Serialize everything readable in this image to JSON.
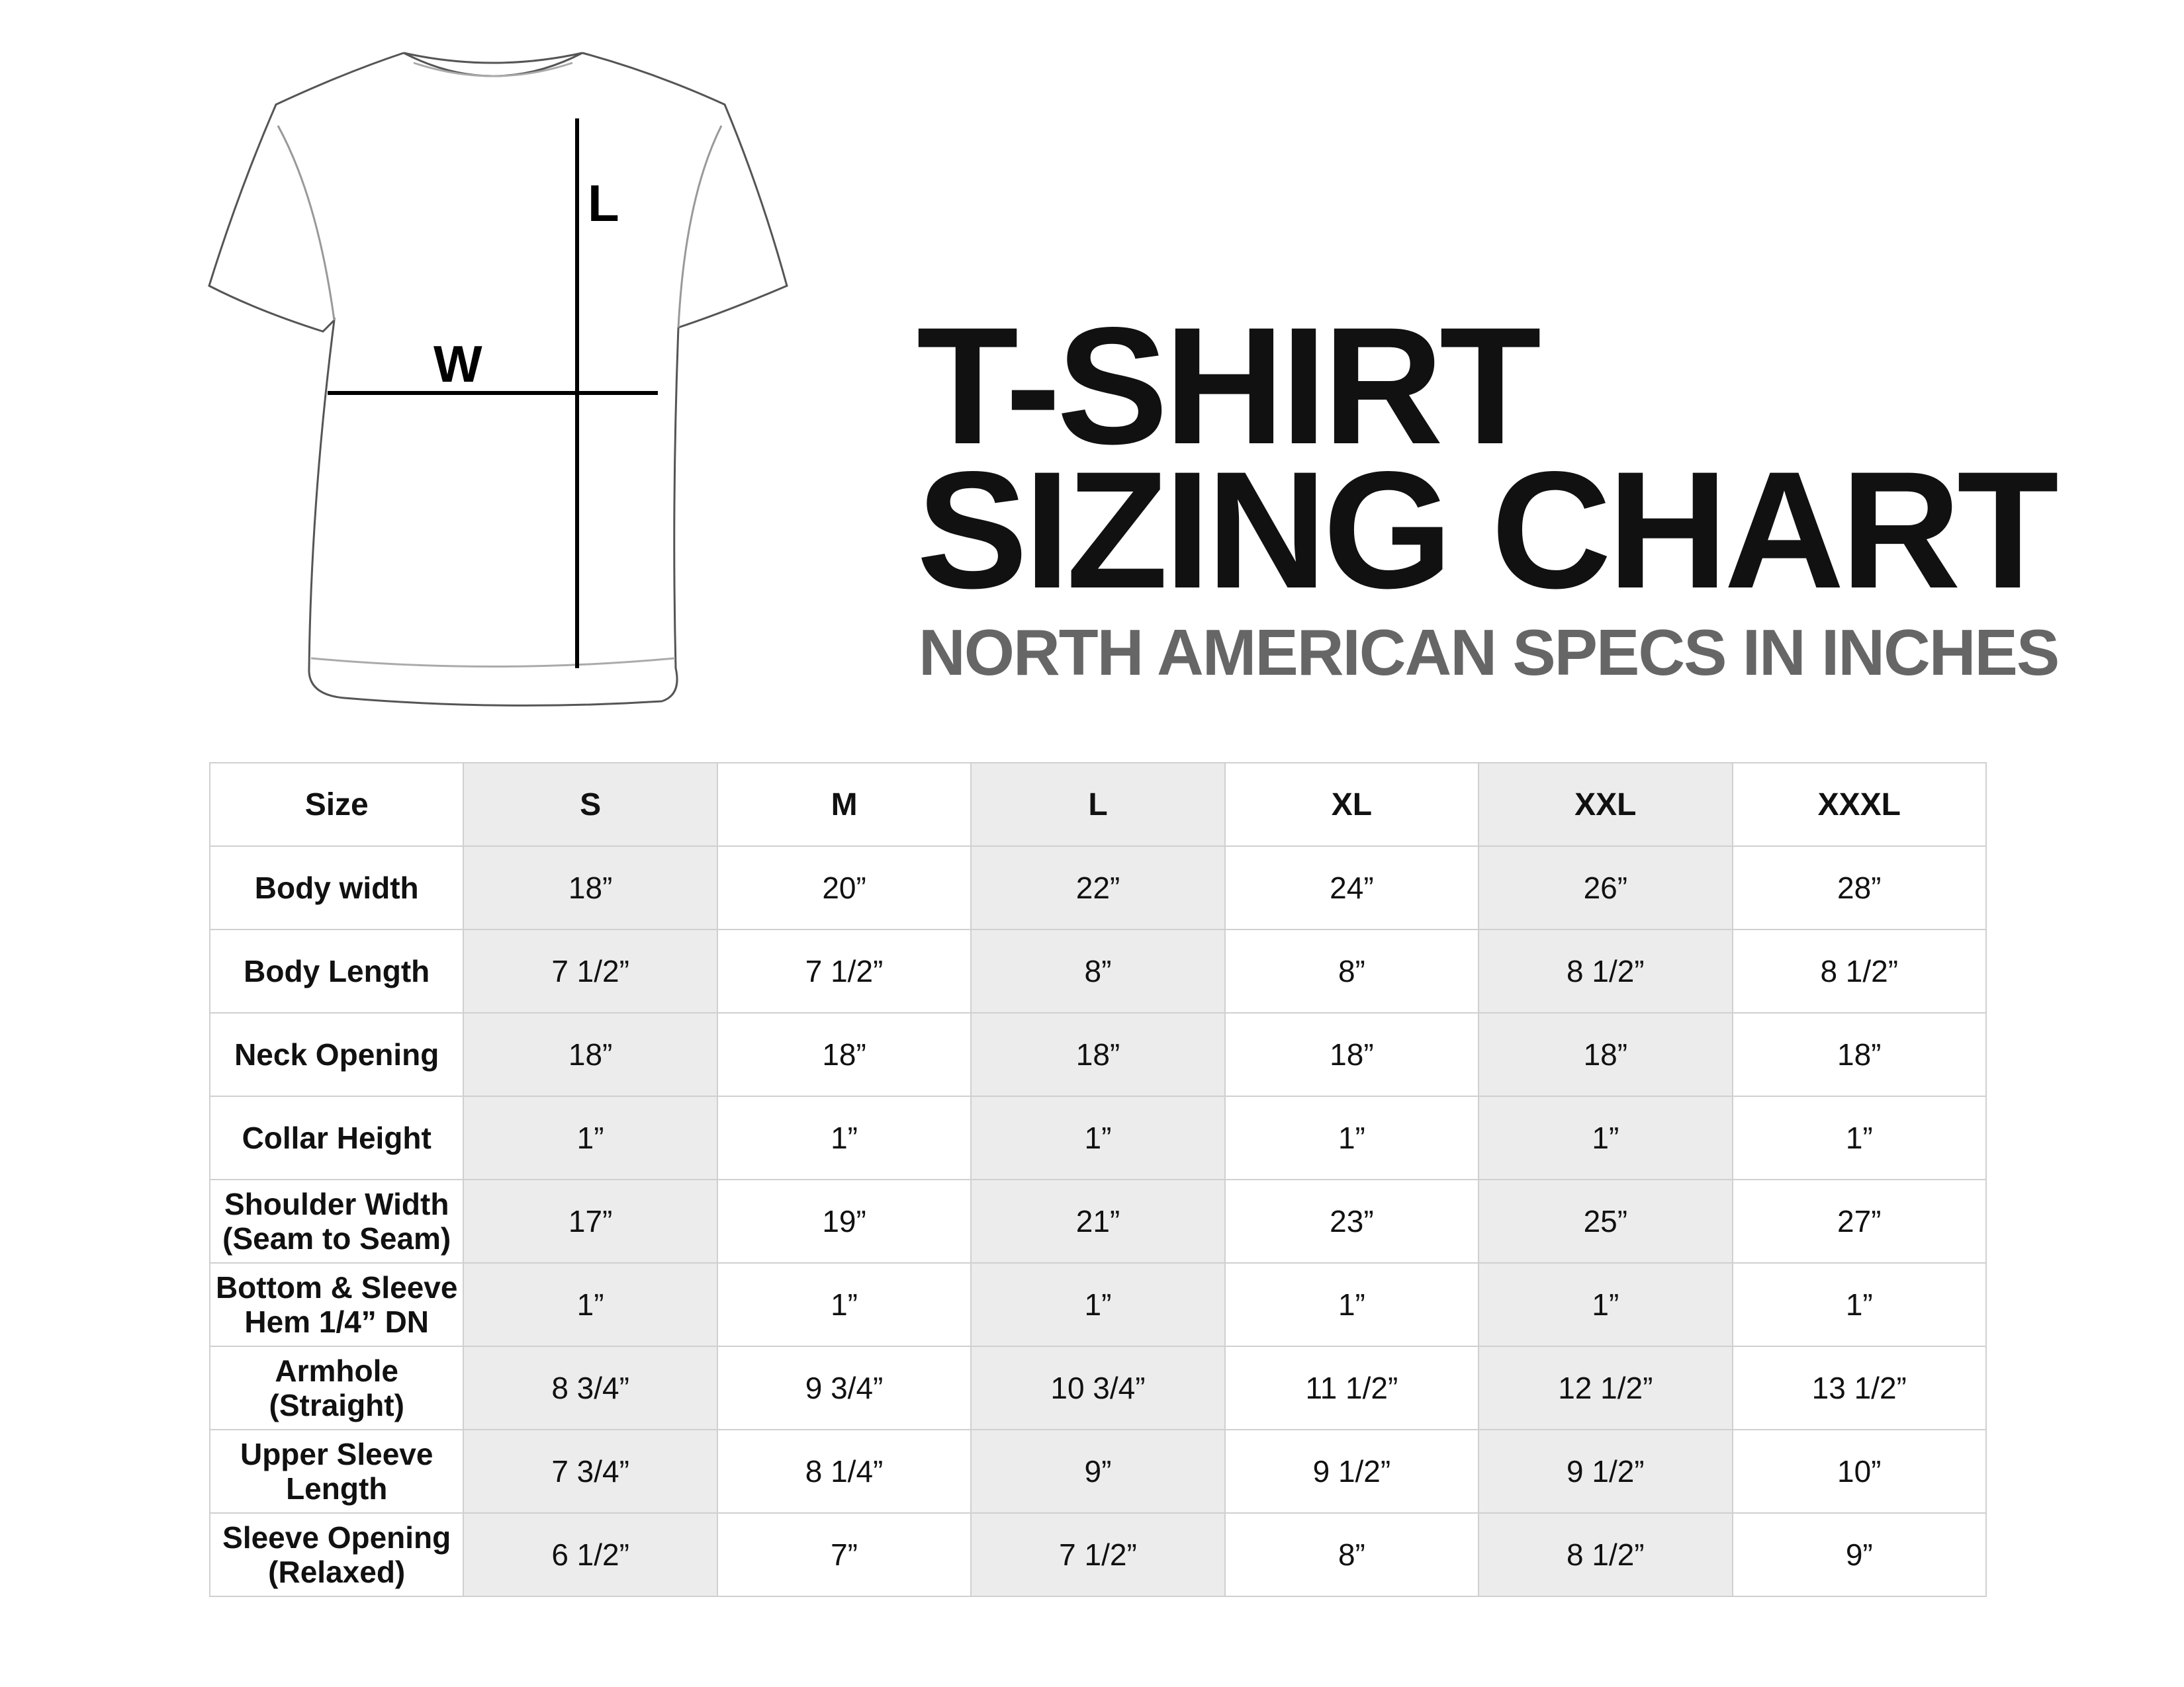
{
  "diagram": {
    "length_label": "L",
    "width_label": "W"
  },
  "title": {
    "line1": "T-SHIRT",
    "line2": "SIZING CHART",
    "subtitle": "NORTH AMERICAN SPECS IN INCHES"
  },
  "colors": {
    "shade": "#ececec",
    "subtitle": "#666666"
  },
  "table": {
    "header_label": "Size",
    "sizes": [
      "S",
      "M",
      "L",
      "XL",
      "XXL",
      "XXXL"
    ],
    "rows": [
      {
        "label": "Body width",
        "values": [
          "18”",
          "20”",
          "22”",
          "24”",
          "26”",
          "28”"
        ]
      },
      {
        "label": "Body Length",
        "values": [
          "7 1/2”",
          "7 1/2”",
          "8”",
          "8”",
          "8 1/2”",
          "8 1/2”"
        ]
      },
      {
        "label": "Neck Opening",
        "values": [
          "18”",
          "18”",
          "18”",
          "18”",
          "18”",
          "18”"
        ]
      },
      {
        "label": "Collar Height",
        "values": [
          "1”",
          "1”",
          "1”",
          "1”",
          "1”",
          "1”"
        ]
      },
      {
        "label": "Shoulder Width\n(Seam to Seam)",
        "values": [
          "17”",
          "19”",
          "21”",
          "23”",
          "25”",
          "27”"
        ]
      },
      {
        "label": "Bottom & Sleeve\nHem 1/4” DN",
        "values": [
          "1”",
          "1”",
          "1”",
          "1”",
          "1”",
          "1”"
        ]
      },
      {
        "label": "Armhole\n(Straight)",
        "values": [
          "8 3/4”",
          "9 3/4”",
          "10 3/4”",
          "11 1/2”",
          "12 1/2”",
          "13 1/2”"
        ]
      },
      {
        "label": "Upper Sleeve\nLength",
        "values": [
          "7 3/4”",
          "8 1/4”",
          "9”",
          "9 1/2”",
          "9 1/2”",
          "10”"
        ]
      },
      {
        "label": "Sleeve Opening\n(Relaxed)",
        "values": [
          "6 1/2”",
          "7”",
          "7 1/2”",
          "8”",
          "8 1/2”",
          "9”"
        ]
      }
    ]
  }
}
